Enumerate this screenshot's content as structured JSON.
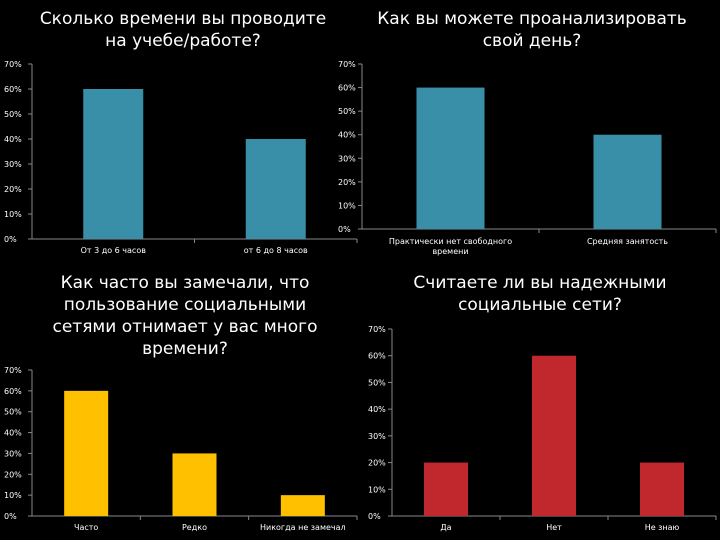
{
  "chart_data": [
    {
      "type": "bar",
      "title": "Сколько времени вы проводите на учебе/работе?",
      "categories": [
        "От 3 до 6 часов",
        "от 6 до 8 часов"
      ],
      "series": [
        {
          "values": [
            60,
            40
          ]
        }
      ],
      "ylim": [
        0,
        70
      ],
      "yticks": [
        "0%",
        "10%",
        "20%",
        "30%",
        "40%",
        "50%",
        "60%",
        "70%"
      ],
      "grid": false,
      "color": "#3a8fa8"
    },
    {
      "type": "bar",
      "title": "Как вы можете проанализировать свой день?",
      "categories": [
        "Практически нет свободного времени",
        "Средняя занятость"
      ],
      "series": [
        {
          "values": [
            60,
            40
          ]
        }
      ],
      "ylim": [
        0,
        70
      ],
      "yticks": [
        "0%",
        "10%",
        "20%",
        "30%",
        "40%",
        "50%",
        "60%",
        "70%"
      ],
      "grid": false,
      "color": "#3a8fa8"
    },
    {
      "type": "bar",
      "title": "Как часто вы замечали, что пользование социальными сетями отнимает у вас много времени?",
      "categories": [
        "Часто",
        "Редко",
        "Никогда не замечал"
      ],
      "series": [
        {
          "values": [
            60,
            30,
            10
          ]
        }
      ],
      "ylim": [
        0,
        70
      ],
      "yticks": [
        "0%",
        "10%",
        "20%",
        "30%",
        "40%",
        "50%",
        "60%",
        "70%"
      ],
      "grid": false,
      "color": "#ffc000"
    },
    {
      "type": "bar",
      "title": "Считаете ли вы надежными социальные сети?",
      "categories": [
        "Да",
        "Нет",
        "Не знаю"
      ],
      "series": [
        {
          "values": [
            20,
            60,
            20
          ]
        }
      ],
      "ylim": [
        0,
        70
      ],
      "yticks": [
        "0%",
        "10%",
        "20%",
        "30%",
        "40%",
        "50%",
        "60%",
        "70%"
      ],
      "grid": false,
      "color": "#c0282d"
    }
  ]
}
